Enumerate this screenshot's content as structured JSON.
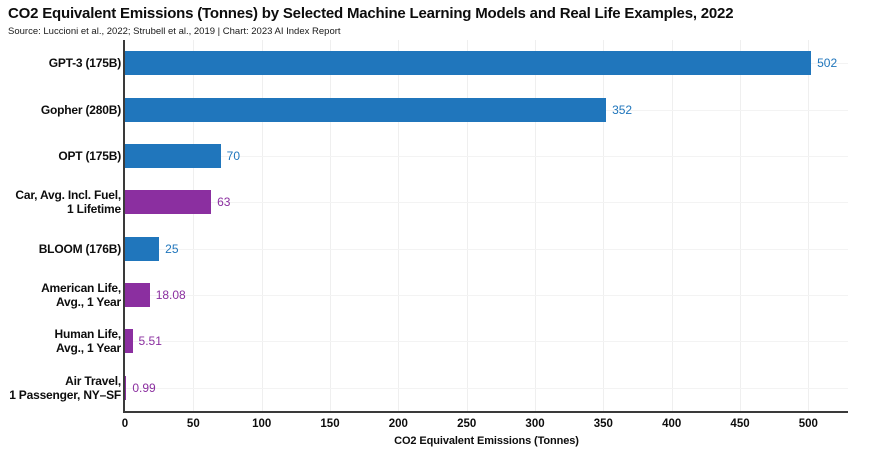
{
  "header": {
    "title": "CO2 Equivalent Emissions (Tonnes) by Selected Machine Learning Models and Real Life Examples, 2022",
    "source": "Source: Luccioni et al., 2022; Strubell et al., 2019 | Chart: 2023 AI Index Report"
  },
  "chart_data": {
    "type": "bar",
    "orientation": "horizontal",
    "title": "CO2 Equivalent Emissions (Tonnes) by Selected Machine Learning Models and Real Life Examples, 2022",
    "subtitle": "Source: Luccioni et al., 2022; Strubell et al., 2019 | Chart: 2023 AI Index Report",
    "xlabel": "CO2 Equivalent Emissions (Tonnes)",
    "ylabel": "",
    "xlim": [
      0,
      529
    ],
    "xticks": [
      0,
      50,
      100,
      150,
      200,
      250,
      300,
      350,
      400,
      450,
      500
    ],
    "grid": true,
    "legend": "none",
    "categories": [
      "GPT-3 (175B)",
      "Gopher (280B)",
      "OPT (175B)",
      "Car, Avg. Incl. Fuel,\n1 Lifetime",
      "BLOOM (176B)",
      "American Life,\nAvg., 1 Year",
      "Human Life,\nAvg., 1 Year",
      "Air Travel,\n1 Passenger, NY–SF"
    ],
    "values": [
      502,
      352,
      70,
      63,
      25,
      18.08,
      5.51,
      0.99
    ],
    "value_labels": [
      "502",
      "352",
      "70",
      "63",
      "25",
      "18.08",
      "5.51",
      "0.99"
    ],
    "bar_colors": [
      "#2076BC",
      "#2076BC",
      "#2076BC",
      "#8B2FA0",
      "#2076BC",
      "#8B2FA0",
      "#8B2FA0",
      "#8B2FA0"
    ],
    "colors": {
      "model_blue": "#2076BC",
      "real_life_purple": "#8B2FA0",
      "grid_line": "#efefef",
      "axis_line": "#3a3a3a",
      "text": "#0d0d0d"
    }
  }
}
